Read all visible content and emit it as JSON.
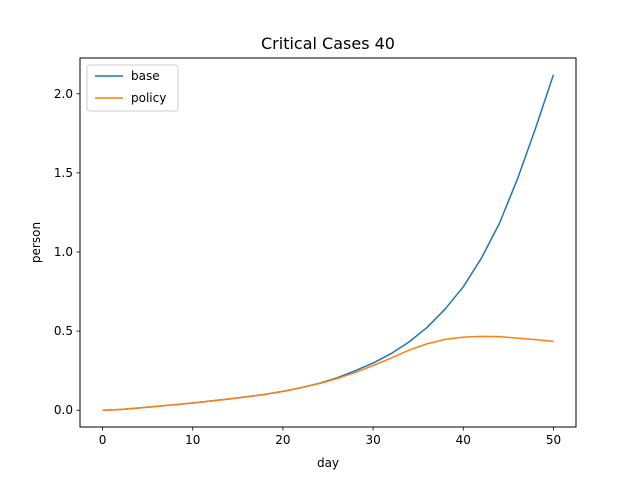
{
  "chart_data": {
    "type": "line",
    "title": "Critical Cases 40",
    "xlabel": "day",
    "ylabel": "person",
    "xlim": [
      -2.5,
      52.5
    ],
    "ylim": [
      -0.106,
      2.226
    ],
    "xticks": [
      0,
      10,
      20,
      30,
      40,
      50
    ],
    "yticks": [
      0.0,
      0.5,
      1.0,
      1.5,
      2.0
    ],
    "xtick_labels": [
      "0",
      "10",
      "20",
      "30",
      "40",
      "50"
    ],
    "ytick_labels": [
      "0.0",
      "0.5",
      "1.0",
      "1.5",
      "2.0"
    ],
    "grid": false,
    "legend_position": "top-left",
    "series": [
      {
        "name": "base",
        "color": "#1f77b4",
        "x": [
          0,
          2,
          4,
          6,
          8,
          10,
          12,
          14,
          16,
          18,
          20,
          22,
          24,
          26,
          28,
          30,
          32,
          34,
          36,
          38,
          40,
          42,
          44,
          46,
          48,
          50
        ],
        "y": [
          0.0,
          0.005,
          0.014,
          0.024,
          0.035,
          0.046,
          0.058,
          0.071,
          0.085,
          0.1,
          0.119,
          0.142,
          0.17,
          0.205,
          0.249,
          0.298,
          0.358,
          0.432,
          0.524,
          0.64,
          0.78,
          0.96,
          1.18,
          1.46,
          1.78,
          2.12
        ]
      },
      {
        "name": "policy",
        "color": "#ff7f0e",
        "x": [
          0,
          2,
          4,
          6,
          8,
          10,
          12,
          14,
          16,
          18,
          20,
          22,
          24,
          26,
          28,
          30,
          32,
          34,
          36,
          38,
          40,
          42,
          44,
          46,
          48,
          50
        ],
        "y": [
          0.0,
          0.005,
          0.014,
          0.024,
          0.035,
          0.046,
          0.058,
          0.071,
          0.085,
          0.1,
          0.119,
          0.142,
          0.168,
          0.2,
          0.238,
          0.282,
          0.33,
          0.38,
          0.42,
          0.448,
          0.462,
          0.467,
          0.465,
          0.456,
          0.446,
          0.435
        ]
      }
    ]
  }
}
